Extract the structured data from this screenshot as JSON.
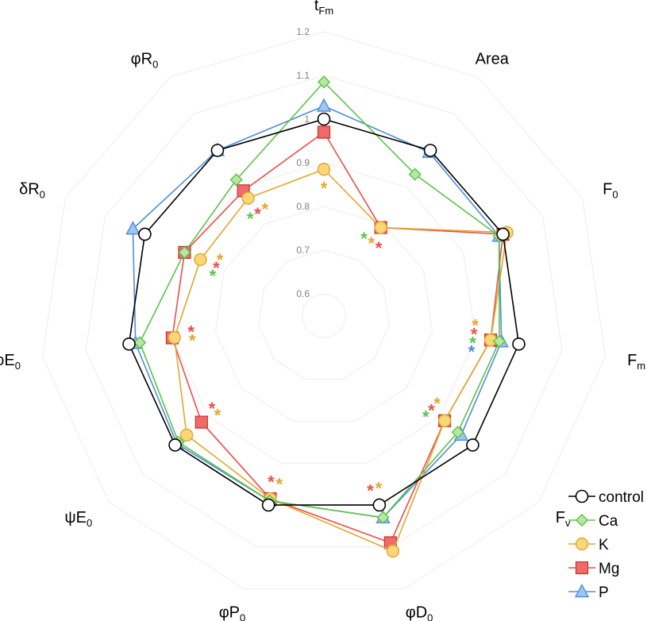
{
  "chart_data": {
    "type": "radar",
    "rlim": [
      0.6,
      1.2
    ],
    "r_ticks": [
      "0.6",
      "0.7",
      "0.8",
      "0.9",
      "1",
      "1.1",
      "1.2"
    ],
    "grid": true,
    "legend_position": "bottom-right",
    "axes": [
      {
        "main": "t",
        "sub": "Fm"
      },
      {
        "main": "Area",
        "sub": ""
      },
      {
        "main": "F",
        "sub": "0"
      },
      {
        "main": "F",
        "sub": "m"
      },
      {
        "main": "F",
        "sub": "v"
      },
      {
        "main": "φD",
        "sub": "0"
      },
      {
        "main": "φP",
        "sub": "0"
      },
      {
        "main": "ψE",
        "sub": "0"
      },
      {
        "main": "φE",
        "sub": "0"
      },
      {
        "main": "δR",
        "sub": "0"
      },
      {
        "main": "φR",
        "sub": "0"
      }
    ],
    "series": [
      {
        "name": "control",
        "color": "#000000",
        "marker": "circle-open",
        "values": [
          1.0,
          1.0,
          1.0,
          1.0,
          1.0,
          1.0,
          1.0,
          1.0,
          1.0,
          1.0,
          1.0
        ]
      },
      {
        "name": "Ca",
        "color": "#5cc24a",
        "marker": "diamond",
        "values": [
          1.085,
          0.935,
          0.99,
          0.955,
          0.955,
          1.03,
          0.99,
          0.99,
          0.975,
          0.9,
          0.92
        ]
      },
      {
        "name": "K",
        "color": "#e0a82e",
        "marker": "circle",
        "values": [
          0.885,
          0.79,
          1.01,
          0.935,
          0.915,
          1.11,
          0.985,
          0.965,
          0.895,
          0.86,
          0.87
        ]
      },
      {
        "name": "Mg",
        "color": "#ee4c4c",
        "marker": "square",
        "values": [
          0.97,
          0.79,
          1.0,
          0.935,
          0.915,
          1.09,
          0.985,
          0.92,
          0.9,
          0.9,
          0.89
        ]
      },
      {
        "name": "P",
        "color": "#4f8fd8",
        "marker": "triangle",
        "values": [
          1.03,
          0.995,
          0.99,
          0.96,
          0.965,
          1.03,
          0.99,
          0.995,
          0.985,
          1.03,
          1.0
        ]
      }
    ],
    "significance": [
      {
        "axis": 0,
        "marks": [
          {
            "color": "#e0a82e"
          }
        ]
      },
      {
        "axis": 1,
        "marks": [
          {
            "color": "#5cc24a"
          },
          {
            "color": "#e0a82e"
          },
          {
            "color": "#ee4c4c"
          }
        ]
      },
      {
        "axis": 3,
        "marks": [
          {
            "color": "#e0a82e"
          },
          {
            "color": "#ee4c4c"
          },
          {
            "color": "#5cc24a"
          },
          {
            "color": "#4f8fd8"
          }
        ]
      },
      {
        "axis": 4,
        "marks": [
          {
            "color": "#e0a82e"
          },
          {
            "color": "#ee4c4c"
          },
          {
            "color": "#5cc24a"
          }
        ]
      },
      {
        "axis": 5,
        "marks": [
          {
            "color": "#e0a82e"
          },
          {
            "color": "#ee4c4c"
          }
        ]
      },
      {
        "axis": 6,
        "marks": [
          {
            "color": "#e0a82e"
          },
          {
            "color": "#ee4c4c"
          }
        ]
      },
      {
        "axis": 7,
        "marks": [
          {
            "color": "#e0a82e"
          },
          {
            "color": "#ee4c4c"
          }
        ]
      },
      {
        "axis": 8,
        "marks": [
          {
            "color": "#e0a82e"
          },
          {
            "color": "#ee4c4c"
          }
        ]
      },
      {
        "axis": 9,
        "marks": [
          {
            "color": "#5cc24a"
          },
          {
            "color": "#ee4c4c"
          },
          {
            "color": "#e0a82e"
          }
        ]
      },
      {
        "axis": 10,
        "marks": [
          {
            "color": "#5cc24a"
          },
          {
            "color": "#ee4c4c"
          },
          {
            "color": "#e0a82e"
          }
        ]
      }
    ],
    "significance_symbol": "*"
  }
}
